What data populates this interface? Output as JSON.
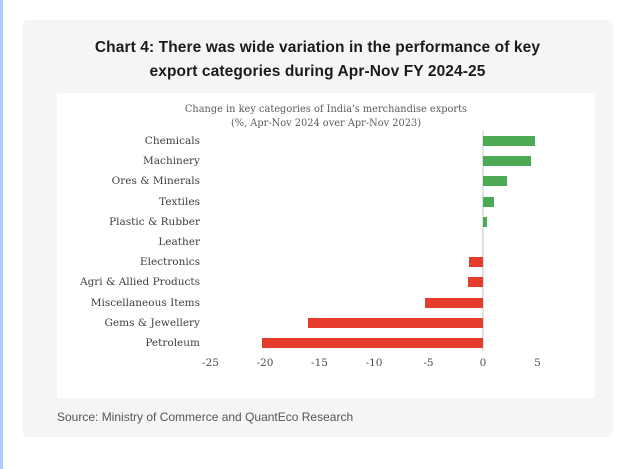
{
  "page": {
    "accent_color": "#a9cbf4",
    "card_bg": "#f5f5f5",
    "title_line1": "Chart 4: There was wide variation in the performance of key",
    "title_line2": "export categories during Apr-Nov FY 2024-25",
    "source": "Source: Ministry of Commerce and QuantEco Research"
  },
  "chart_data": {
    "type": "bar",
    "orientation": "horizontal",
    "title": "Change in key categories of India's merchandise exports",
    "subtitle": "(%, Apr-Nov 2024 over Apr-Nov 2023)",
    "categories": [
      "Chemicals",
      "Machinery",
      "Ores & Minerals",
      "Textiles",
      "Plastic & Rubber",
      "Leather",
      "Electronics",
      "Agri & Allied Products",
      "Miscellaneous Items",
      "Gems & Jewellery",
      "Petroleum"
    ],
    "values": [
      4.8,
      4.4,
      2.2,
      1.0,
      0.4,
      0.0,
      -1.3,
      -1.4,
      -5.3,
      -16.1,
      -20.3
    ],
    "x_ticks": [
      -25,
      -20,
      -15,
      -10,
      -5,
      0,
      5
    ],
    "xlim": [
      -27,
      7
    ],
    "grid": false,
    "legend": false,
    "positive_color": "#4caa54",
    "negative_color": "#e63c2e",
    "zero_line_color": "#e2e2e2"
  }
}
